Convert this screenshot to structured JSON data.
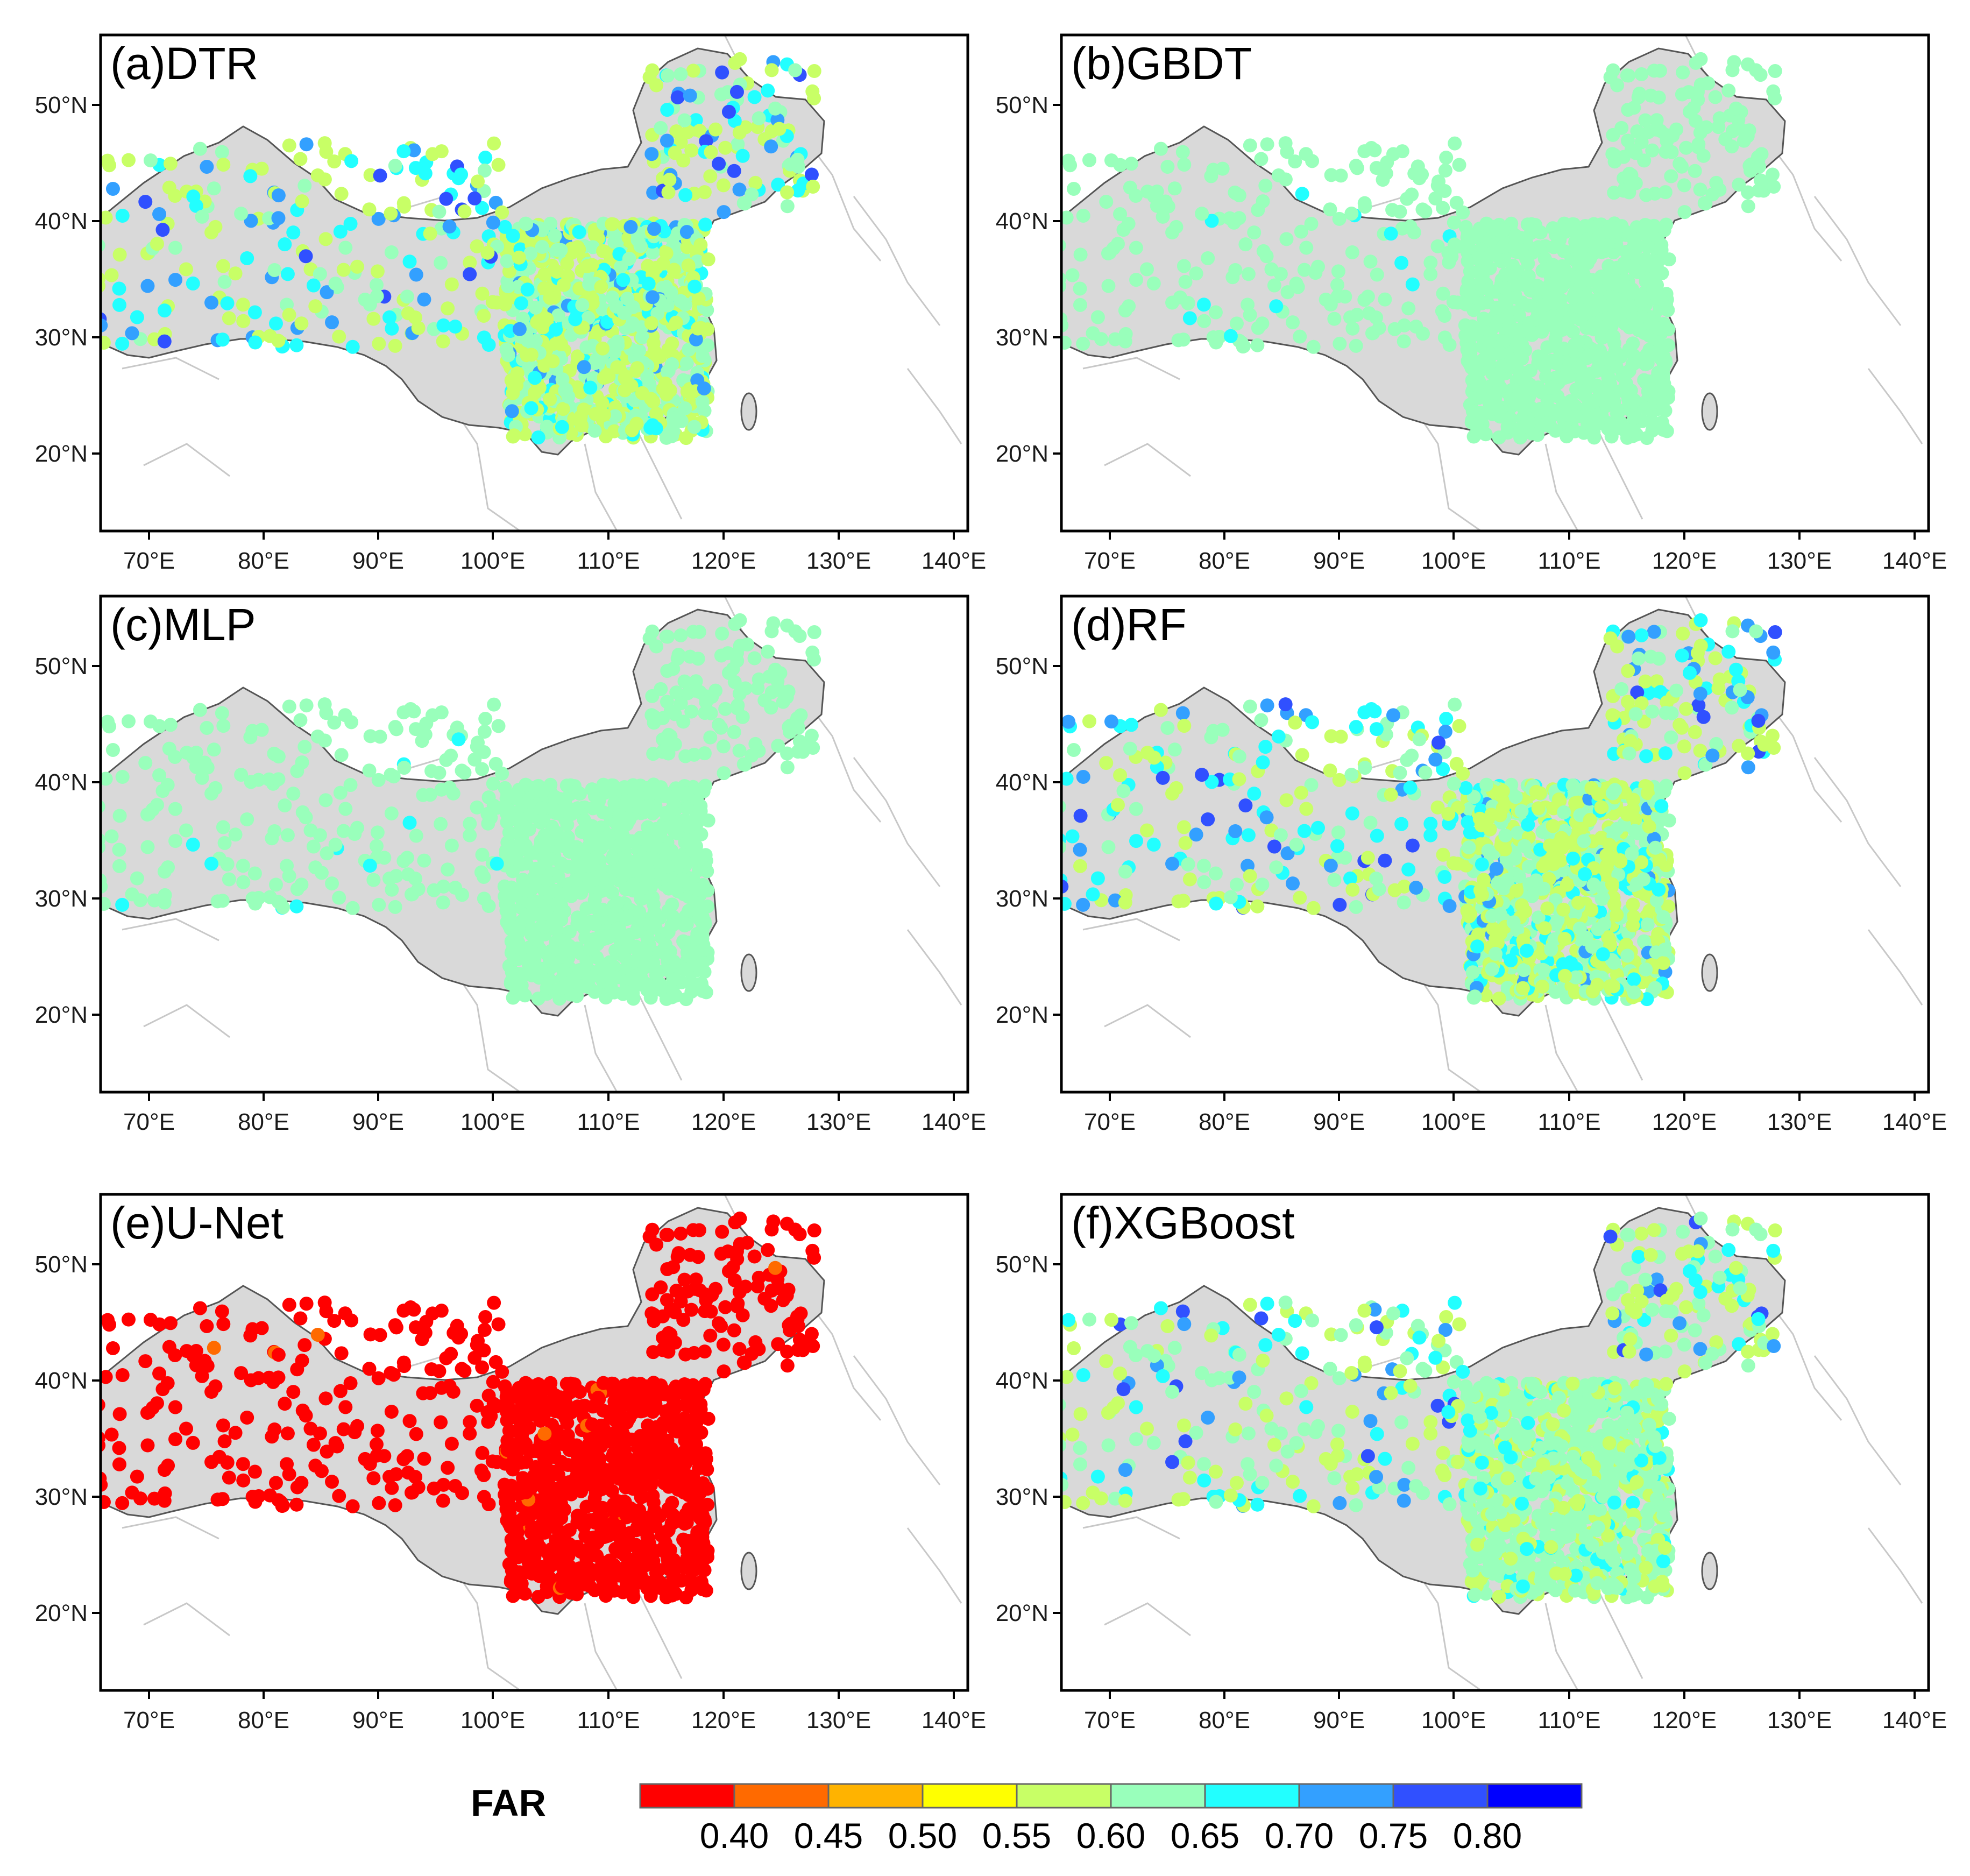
{
  "figure": {
    "panels": [
      {
        "label": "(a)DTR",
        "scheme": "mixed"
      },
      {
        "label": "(b)GBDT",
        "scheme": "uniform"
      },
      {
        "label": "(c)MLP",
        "scheme": "uniform"
      },
      {
        "label": "(d)RF",
        "scheme": "mixed"
      },
      {
        "label": "(e)U-Net",
        "scheme": "red"
      },
      {
        "label": "(f)XGBoost",
        "scheme": "mixed-light"
      }
    ],
    "x_ticks": [
      "70°E",
      "80°E",
      "90°E",
      "100°E",
      "110°E",
      "120°E",
      "130°E",
      "140°E"
    ],
    "y_ticks": [
      "50°N",
      "40°N",
      "30°N",
      "20°N"
    ],
    "colorbar": {
      "title": "FAR",
      "tick_labels": [
        "0.40",
        "0.45",
        "0.50",
        "0.55",
        "0.60",
        "0.65",
        "0.70",
        "0.75",
        "0.80"
      ],
      "colors": [
        "#ff0000",
        "#ff6a00",
        "#ffb300",
        "#ffff00",
        "#c8ff66",
        "#99ffbb",
        "#22ffff",
        "#33a0ff",
        "#3050ff",
        "#0000ff"
      ]
    }
  },
  "chart_data": {
    "type": "map",
    "variable": "FAR",
    "lon_range": [
      66,
      140
    ],
    "lat_range": [
      15,
      55
    ],
    "color_classes": [
      {
        "max": 0.4,
        "color": "#ff0000"
      },
      {
        "range": [
          0.4,
          0.45
        ],
        "color": "#ff6a00"
      },
      {
        "range": [
          0.45,
          0.5
        ],
        "color": "#ffb300"
      },
      {
        "range": [
          0.5,
          0.55
        ],
        "color": "#ffff00"
      },
      {
        "range": [
          0.55,
          0.6
        ],
        "color": "#c8ff66"
      },
      {
        "range": [
          0.6,
          0.65
        ],
        "color": "#99ffbb"
      },
      {
        "range": [
          0.65,
          0.7
        ],
        "color": "#22ffff"
      },
      {
        "range": [
          0.7,
          0.75
        ],
        "color": "#33a0ff"
      },
      {
        "range": [
          0.75,
          0.8
        ],
        "color": "#3050ff"
      },
      {
        "min": 0.8,
        "color": "#0000ff"
      }
    ],
    "panels": [
      "(a)DTR",
      "(b)GBDT",
      "(c)MLP",
      "(d)RF",
      "(e)U-Net",
      "(f)XGBoost"
    ],
    "dominant_class": {
      "(a)DTR": "0.55-0.65 mixed, scattered 0.65-0.80 in the west",
      "(b)GBDT": "0.60-0.65",
      "(c)MLP": "0.60-0.65",
      "(d)RF": "0.55-0.65 mixed, scattered 0.65-0.80",
      "(e)U-Net": "<0.40",
      "(f)XGBoost": "0.60-0.65 with scattered 0.55-0.75"
    }
  }
}
